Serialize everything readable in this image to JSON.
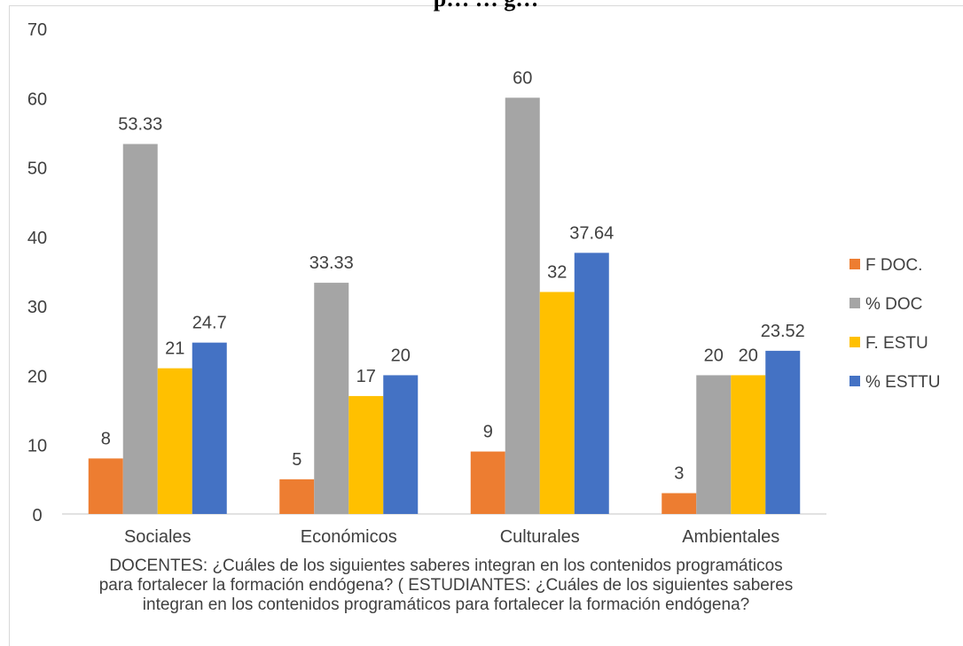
{
  "chart_data": {
    "type": "bar",
    "title": "p… … g…",
    "categories": [
      "Sociales",
      "Económicos",
      "Culturales",
      "Ambientales"
    ],
    "series": [
      {
        "name": "F DOC.",
        "color": "#ED7D31",
        "values": [
          8,
          5,
          9,
          3
        ],
        "labels": [
          "8",
          "5",
          "9",
          "3"
        ]
      },
      {
        "name": "% DOC",
        "color": "#A5A5A5",
        "values": [
          53.33,
          33.33,
          60,
          20
        ],
        "labels": [
          "53.33",
          "33.33",
          "60",
          "20"
        ]
      },
      {
        "name": "F. ESTU",
        "color": "#FFC000",
        "values": [
          21,
          17,
          32,
          20
        ],
        "labels": [
          "21",
          "17",
          "32",
          "20"
        ]
      },
      {
        "name": "% ESTTU",
        "color": "#4472C4",
        "values": [
          24.7,
          20,
          37.64,
          23.52
        ],
        "labels": [
          "24.7",
          "20",
          "37.64",
          "23.52"
        ]
      }
    ],
    "ylim": [
      0,
      70
    ],
    "yticks": [
      0,
      10,
      20,
      30,
      40,
      50,
      60,
      70
    ],
    "xlabel": "DOCENTES: ¿Cuáles de los siguientes saberes integran en los contenidos programáticos para fortalecer la formación endógena? ( ESTUDIANTES: ¿Cuáles de los siguientes saberes integran en los contenidos programáticos para fortalecer la formación endógena?",
    "xlabel_lines": [
      "DOCENTES: ¿Cuáles de los siguientes saberes integran en los contenidos programáticos",
      "para fortalecer la formación endógena? ( ESTUDIANTES: ¿Cuáles de los siguientes saberes",
      "integran en los contenidos programáticos para fortalecer la formación endógena?"
    ],
    "grid": false,
    "legend_position": "right"
  }
}
